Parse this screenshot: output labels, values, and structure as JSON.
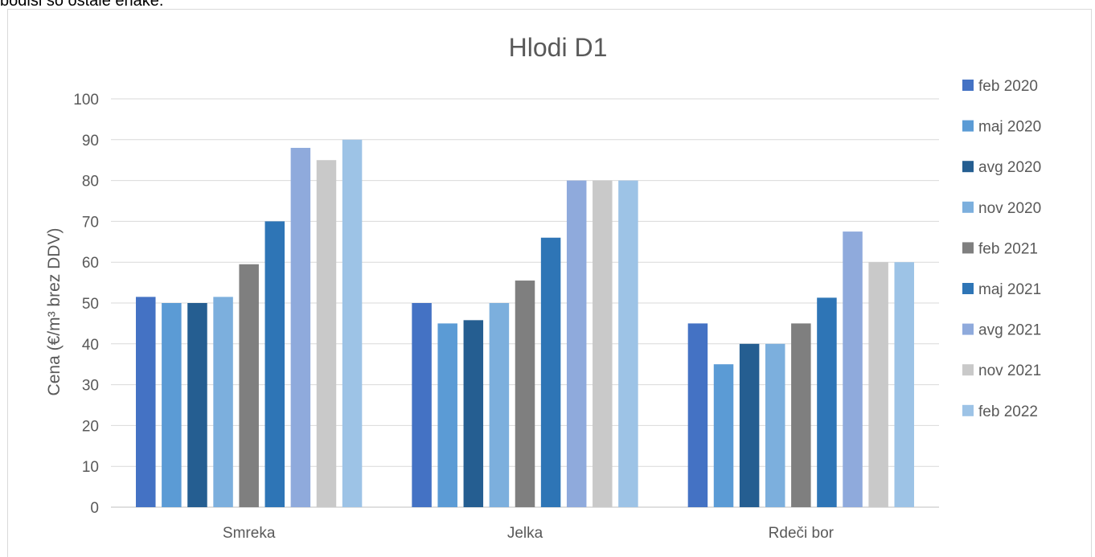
{
  "header_text": "bodisi so ostale enake.",
  "chart_data": {
    "type": "bar",
    "title": "Hlodi D1",
    "xlabel": "",
    "ylabel": "Cena (€/m³ brez DDV)",
    "ylim": [
      0,
      100
    ],
    "yticks": [
      0,
      10,
      20,
      30,
      40,
      50,
      60,
      70,
      80,
      90,
      100
    ],
    "grid": true,
    "legend_position": "right",
    "categories": [
      "Smreka",
      "Jelka",
      "Rdeči bor"
    ],
    "series": [
      {
        "name": "feb 2020",
        "color": "#4472c4",
        "values": [
          51.5,
          50,
          45
        ]
      },
      {
        "name": "maj 2020",
        "color": "#5b9bd5",
        "values": [
          50,
          45,
          35
        ]
      },
      {
        "name": "avg 2020",
        "color": "#255e91",
        "values": [
          50,
          45.8,
          40
        ]
      },
      {
        "name": "nov 2020",
        "color": "#7cafdd",
        "values": [
          51.5,
          50,
          40
        ]
      },
      {
        "name": "feb 2021",
        "color": "#7f7f7f",
        "values": [
          59.5,
          55.5,
          45
        ]
      },
      {
        "name": "maj 2021",
        "color": "#2e75b6",
        "values": [
          70,
          66,
          51.3
        ]
      },
      {
        "name": "avg 2021",
        "color": "#8faadc",
        "values": [
          88,
          80,
          67.5
        ]
      },
      {
        "name": "nov 2021",
        "color": "#c9c9c9",
        "values": [
          85,
          80,
          60
        ]
      },
      {
        "name": "feb 2022",
        "color": "#9dc3e6",
        "values": [
          90,
          80,
          60
        ]
      }
    ]
  }
}
